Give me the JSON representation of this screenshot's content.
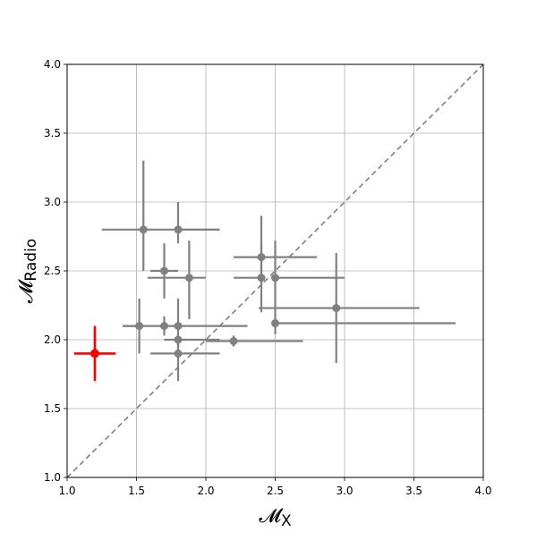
{
  "chart_data": {
    "type": "scatter",
    "xlabel": "𝓜",
    "xlabel_sub": "X",
    "ylabel": "𝓜",
    "ylabel_sub": "Radio",
    "xlim": [
      1.0,
      4.0
    ],
    "ylim": [
      1.0,
      4.0
    ],
    "xticks": [
      "1.0",
      "1.5",
      "2.0",
      "2.5",
      "3.0",
      "3.5",
      "4.0"
    ],
    "yticks": [
      "1.0",
      "1.5",
      "2.0",
      "2.5",
      "3.0",
      "3.5",
      "4.0"
    ],
    "grid": true,
    "reference_line": {
      "style": "dashed",
      "color": "#808080",
      "from": [
        1.0,
        1.0
      ],
      "to": [
        4.0,
        4.0
      ]
    },
    "series": [
      {
        "color": "#808080",
        "points": [
          {
            "x": 1.55,
            "y": 2.8,
            "xerr": [
              0.3,
              0.55
            ],
            "yerr": [
              0.3,
              0.5
            ]
          },
          {
            "x": 1.8,
            "y": 2.8,
            "xerr": [
              0.0,
              0.3
            ],
            "yerr": [
              0.1,
              0.2
            ]
          },
          {
            "x": 1.7,
            "y": 2.5,
            "xerr": [
              0.1,
              0.1
            ],
            "yerr": [
              0.2,
              0.2
            ]
          },
          {
            "x": 1.88,
            "y": 2.45,
            "xerr": [
              0.3,
              0.12
            ],
            "yerr": [
              0.3,
              0.27
            ]
          },
          {
            "x": 2.4,
            "y": 2.6,
            "xerr": [
              0.2,
              0.4
            ],
            "yerr": [
              0.2,
              0.3
            ]
          },
          {
            "x": 2.4,
            "y": 2.45,
            "xerr": [
              0.2,
              0.0
            ],
            "yerr": [
              0.25,
              0.25
            ]
          },
          {
            "x": 2.5,
            "y": 2.45,
            "xerr": [
              0.0,
              0.5
            ],
            "yerr": [
              0.25,
              0.27
            ]
          },
          {
            "x": 2.94,
            "y": 2.23,
            "xerr": [
              0.56,
              0.6
            ],
            "yerr": [
              0.4,
              0.4
            ]
          },
          {
            "x": 2.5,
            "y": 2.12,
            "xerr": [
              0.0,
              1.3
            ],
            "yerr": [
              0.08,
              0.08
            ]
          },
          {
            "x": 1.52,
            "y": 2.1,
            "xerr": [
              0.12,
              0.0
            ],
            "yerr": [
              0.2,
              0.2
            ]
          },
          {
            "x": 1.7,
            "y": 2.1,
            "xerr": [
              0.0,
              0.0
            ],
            "yerr": [
              0.07,
              0.07
            ]
          },
          {
            "x": 1.8,
            "y": 2.1,
            "xerr": [
              0.4,
              0.5
            ],
            "yerr": [
              0.2,
              0.2
            ]
          },
          {
            "x": 1.8,
            "y": 2.0,
            "xerr": [
              0.1,
              0.3
            ],
            "yerr": [
              0.05,
              0.05
            ]
          },
          {
            "x": 2.2,
            "y": 1.99,
            "xerr": [
              0.2,
              0.5
            ],
            "yerr": [
              0.04,
              0.04
            ]
          },
          {
            "x": 1.8,
            "y": 1.9,
            "xerr": [
              0.2,
              0.3
            ],
            "yerr": [
              0.2,
              0.1
            ]
          }
        ]
      },
      {
        "color": "#ff0000",
        "points": [
          {
            "x": 1.2,
            "y": 1.9,
            "xerr": [
              0.15,
              0.15
            ],
            "yerr": [
              0.2,
              0.2
            ]
          }
        ]
      }
    ]
  }
}
